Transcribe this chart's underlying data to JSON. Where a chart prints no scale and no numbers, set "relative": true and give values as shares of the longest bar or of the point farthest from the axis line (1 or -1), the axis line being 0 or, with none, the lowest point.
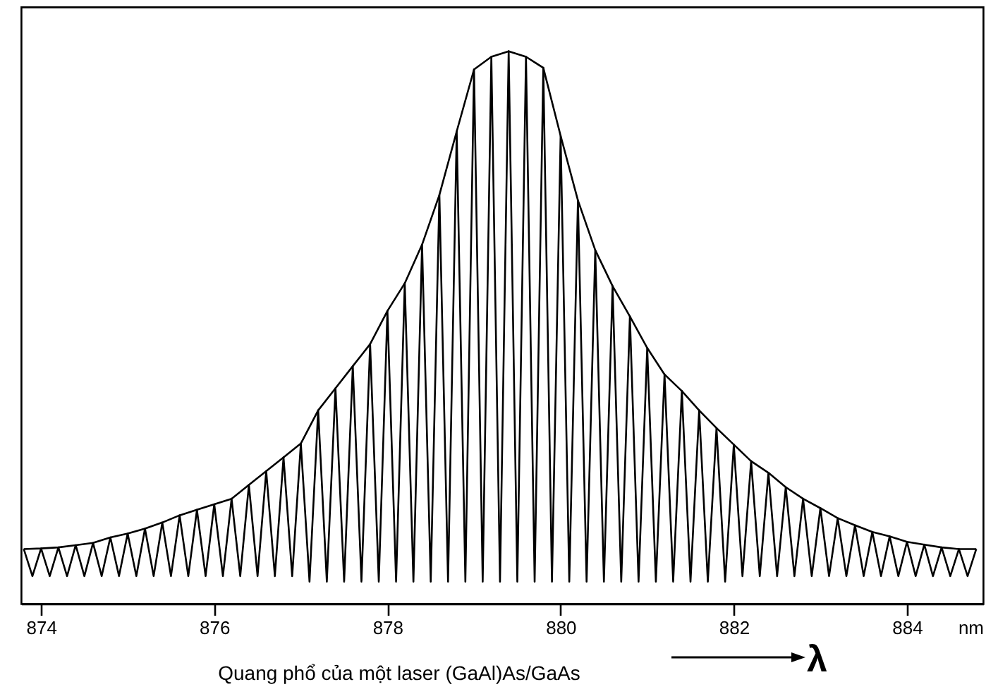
{
  "chart_data": {
    "type": "line",
    "relative": true,
    "xlabel": "nm",
    "xlim": [
      873.77,
      884.88
    ],
    "xticks": [
      874,
      876,
      878,
      880,
      882,
      884
    ],
    "grid": false,
    "marker": "none",
    "line_style": "solid",
    "tick_labels": "x",
    "annotations": [
      "Quang phổ của một laser (GaAl)As/GaAs",
      "λ"
    ],
    "series": [
      {
        "color": "#000000",
        "x": [
          873.8,
          873.9,
          874.0,
          874.1,
          874.2,
          874.3,
          874.4,
          874.5,
          874.6,
          874.7,
          874.8,
          874.9,
          875.0,
          875.1,
          875.2,
          875.3,
          875.4,
          875.5,
          875.6,
          875.7,
          875.8,
          875.9,
          876.0,
          876.1,
          876.2,
          876.3,
          876.4,
          876.5,
          876.6,
          876.7,
          876.8,
          876.9,
          877.0,
          877.1,
          877.2,
          877.3,
          877.4,
          877.5,
          877.6,
          877.7,
          877.8,
          877.9,
          878.0,
          878.1,
          878.2,
          878.3,
          878.4,
          878.5,
          878.6,
          878.7,
          878.8,
          878.9,
          879.0,
          879.1,
          879.2,
          879.3,
          879.4,
          879.5,
          879.6,
          879.7,
          879.8,
          879.9,
          880.0,
          880.1,
          880.2,
          880.3,
          880.4,
          880.5,
          880.6,
          880.7,
          880.8,
          880.9,
          881.0,
          881.1,
          881.2,
          881.3,
          881.4,
          881.5,
          881.6,
          881.7,
          881.8,
          881.9,
          882.0,
          882.1,
          882.2,
          882.3,
          882.4,
          882.5,
          882.6,
          882.7,
          882.8,
          882.9,
          883.0,
          883.1,
          883.2,
          883.3,
          883.4,
          883.5,
          883.6,
          883.7,
          883.8,
          883.9,
          884.0,
          884.1,
          884.2,
          884.3,
          884.4,
          884.5,
          884.6,
          884.7,
          884.8
        ],
        "values": [
          0.099,
          0.05,
          0.1,
          0.05,
          0.102,
          0.05,
          0.106,
          0.05,
          0.11,
          0.05,
          0.12,
          0.05,
          0.127,
          0.05,
          0.136,
          0.05,
          0.147,
          0.05,
          0.16,
          0.05,
          0.17,
          0.05,
          0.18,
          0.05,
          0.19,
          0.05,
          0.215,
          0.05,
          0.24,
          0.05,
          0.265,
          0.05,
          0.29,
          0.04,
          0.35,
          0.04,
          0.39,
          0.04,
          0.43,
          0.04,
          0.47,
          0.04,
          0.53,
          0.04,
          0.58,
          0.04,
          0.65,
          0.04,
          0.74,
          0.04,
          0.855,
          0.04,
          0.967,
          0.04,
          0.99,
          0.04,
          1,
          0.04,
          0.99,
          0.04,
          0.97,
          0.04,
          0.847,
          0.04,
          0.73,
          0.04,
          0.64,
          0.04,
          0.575,
          0.04,
          0.52,
          0.04,
          0.463,
          0.04,
          0.415,
          0.04,
          0.385,
          0.04,
          0.35,
          0.04,
          0.318,
          0.04,
          0.288,
          0.05,
          0.258,
          0.05,
          0.237,
          0.05,
          0.211,
          0.05,
          0.19,
          0.05,
          0.173,
          0.05,
          0.155,
          0.05,
          0.142,
          0.05,
          0.13,
          0.05,
          0.122,
          0.05,
          0.112,
          0.05,
          0.107,
          0.05,
          0.102,
          0.05,
          0.099,
          0.05,
          0.099
        ]
      },
      {
        "color": "#000000",
        "x": [
          873.8,
          874.0,
          874.2,
          874.4,
          874.6,
          874.8,
          875.0,
          875.2,
          875.4,
          875.6,
          875.8,
          876.0,
          876.2,
          876.4,
          876.6,
          876.8,
          877.0,
          877.2,
          877.4,
          877.6,
          877.8,
          878.0,
          878.2,
          878.4,
          878.6,
          878.8,
          879.0,
          879.2,
          879.4,
          879.6,
          879.8,
          880.0,
          880.2,
          880.4,
          880.6,
          880.8,
          881.0,
          881.2,
          881.4,
          881.6,
          881.8,
          882.0,
          882.2,
          882.4,
          882.6,
          882.8,
          883.0,
          883.2,
          883.4,
          883.6,
          883.8,
          884.0,
          884.2,
          884.4,
          884.6,
          884.8
        ],
        "values": [
          0.099,
          0.1,
          0.102,
          0.106,
          0.11,
          0.12,
          0.127,
          0.136,
          0.147,
          0.16,
          0.17,
          0.18,
          0.19,
          0.215,
          0.24,
          0.265,
          0.29,
          0.35,
          0.39,
          0.43,
          0.47,
          0.53,
          0.58,
          0.65,
          0.74,
          0.855,
          0.967,
          0.99,
          1,
          0.99,
          0.97,
          0.847,
          0.73,
          0.64,
          0.575,
          0.52,
          0.463,
          0.415,
          0.385,
          0.35,
          0.318,
          0.288,
          0.258,
          0.237,
          0.211,
          0.19,
          0.173,
          0.155,
          0.142,
          0.13,
          0.122,
          0.112,
          0.107,
          0.102,
          0.099,
          0.099
        ]
      }
    ]
  }
}
